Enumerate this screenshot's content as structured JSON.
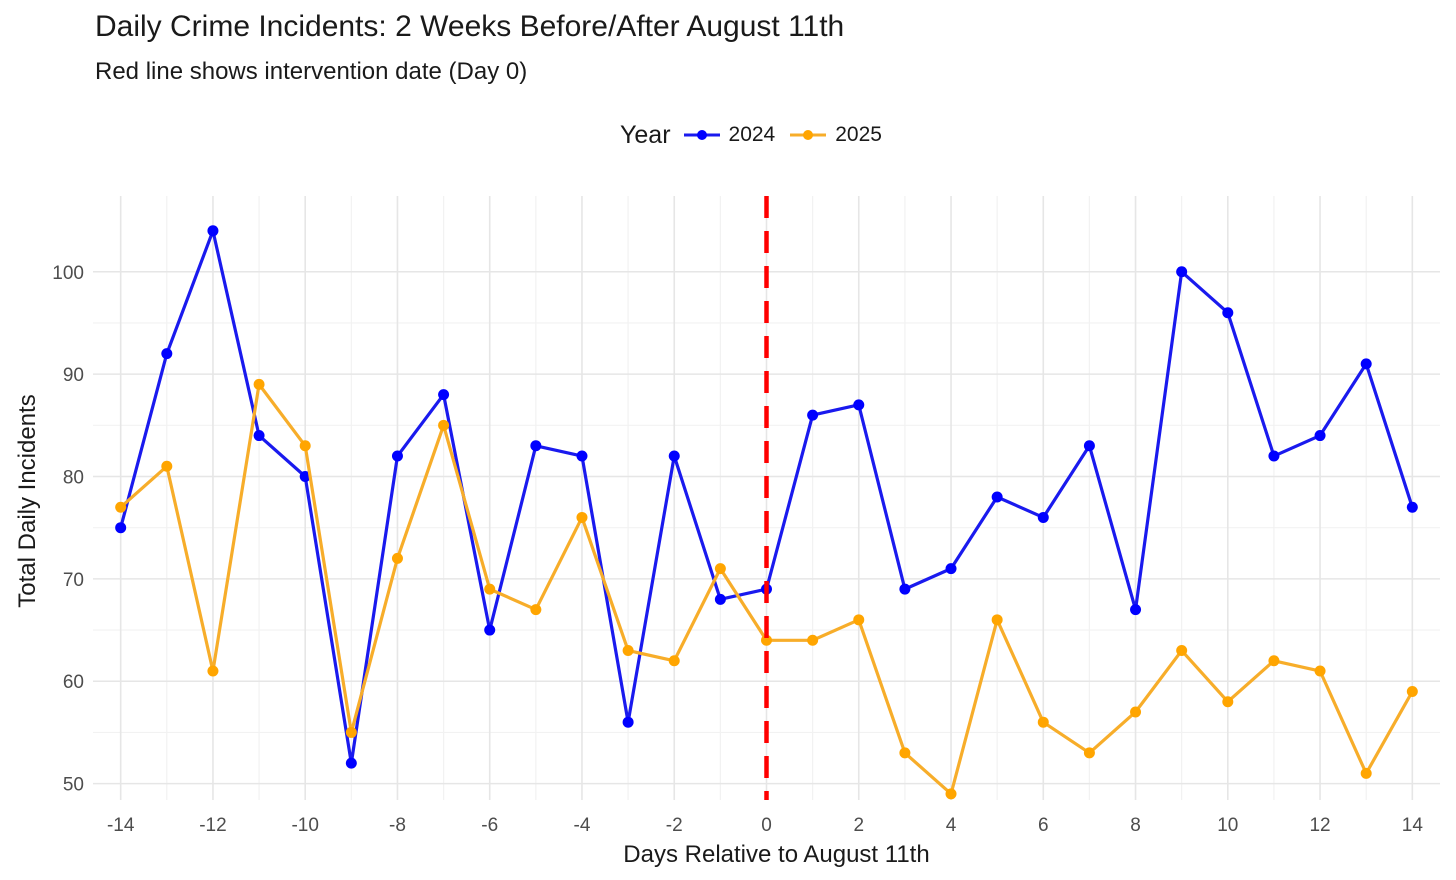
{
  "chart_data": {
    "type": "line",
    "title": "Daily Crime Incidents: 2 Weeks Before/After August 11th",
    "subtitle": "Red line shows intervention date (Day 0)",
    "xlabel": "Days Relative to August 11th",
    "ylabel": "Total Daily Incidents",
    "legend_title": "Year",
    "legend_position": "top",
    "xlim": [
      -14.6,
      14.6
    ],
    "ylim": [
      48.4,
      107.4
    ],
    "grid": true,
    "x_ticks": [
      -14,
      -12,
      -10,
      -8,
      -6,
      -4,
      -2,
      0,
      2,
      4,
      6,
      8,
      10,
      12,
      14
    ],
    "x_tick_labels": [
      "-14",
      "-12",
      "-10",
      "-8",
      "-6",
      "-4",
      "-2",
      "0",
      "2",
      "4",
      "6",
      "8",
      "10",
      "12",
      "14"
    ],
    "y_ticks": [
      50,
      60,
      70,
      80,
      90,
      100
    ],
    "y_tick_labels": [
      "50",
      "60",
      "70",
      "80",
      "90",
      "100"
    ],
    "vline": {
      "x": 0,
      "color": "#ff0000",
      "style": "dashed"
    },
    "x": [
      -14,
      -13,
      -12,
      -11,
      -10,
      -9,
      -8,
      -7,
      -6,
      -5,
      -4,
      -3,
      -2,
      -1,
      0,
      1,
      2,
      3,
      4,
      5,
      6,
      7,
      8,
      9,
      10,
      11,
      12,
      13,
      14
    ],
    "series": [
      {
        "name": "2024",
        "color": "#1a1aee",
        "point_color": "#0000ff",
        "values": [
          75,
          92,
          104,
          84,
          80,
          52,
          82,
          88,
          65,
          83,
          82,
          56,
          82,
          68,
          69,
          86,
          87,
          69,
          71,
          78,
          76,
          83,
          67,
          100,
          96,
          82,
          84,
          91,
          77
        ]
      },
      {
        "name": "2025",
        "color": "#f7ad2a",
        "point_color": "#ffa500",
        "values": [
          77,
          81,
          61,
          89,
          83,
          55,
          72,
          85,
          69,
          67,
          76,
          63,
          62,
          71,
          64,
          64,
          66,
          53,
          49,
          66,
          56,
          53,
          57,
          63,
          58,
          62,
          61,
          51,
          59
        ]
      }
    ]
  }
}
